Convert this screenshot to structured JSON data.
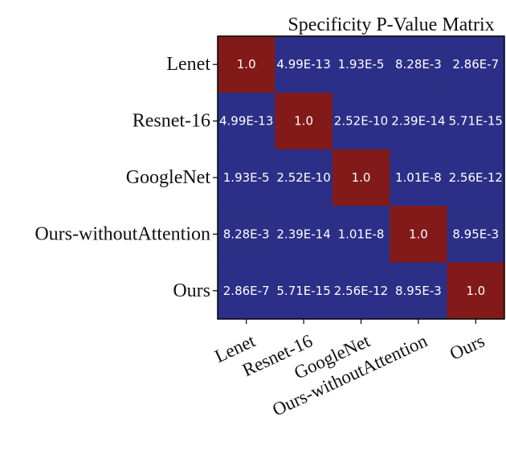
{
  "chart_data": {
    "type": "heatmap",
    "title": "Specificity P-Value Matrix",
    "xlabel": "",
    "ylabel": "",
    "grid": false,
    "colorbar": false,
    "row_labels": [
      "Lenet",
      "Resnet-16",
      "GoogleNet",
      "Ours-withoutAttention",
      "Ours"
    ],
    "col_labels": [
      "Lenet",
      "Resnet-16",
      "GoogleNet",
      "Ours-withoutAttention",
      "Ours"
    ],
    "values": [
      [
        1.0,
        4.99e-13,
        1.93e-05,
        0.00828,
        2.86e-07
      ],
      [
        4.99e-13,
        1.0,
        2.52e-10,
        2.39e-14,
        5.71e-15
      ],
      [
        1.93e-05,
        2.52e-10,
        1.0,
        1.01e-08,
        2.56e-12
      ],
      [
        0.00828,
        2.39e-14,
        1.01e-08,
        1.0,
        0.00895
      ],
      [
        2.86e-07,
        5.71e-15,
        2.56e-12,
        0.00895,
        1.0
      ]
    ],
    "cell_labels": [
      [
        "1.0",
        "4.99E-13",
        "1.93E-5",
        "8.28E-3",
        "2.86E-7"
      ],
      [
        "4.99E-13",
        "1.0",
        "2.52E-10",
        "2.39E-14",
        "5.71E-15"
      ],
      [
        "1.93E-5",
        "2.52E-10",
        "1.0",
        "1.01E-8",
        "2.56E-12"
      ],
      [
        "8.28E-3",
        "2.39E-14",
        "1.01E-8",
        "1.0",
        "8.95E-3"
      ],
      [
        "2.86E-7",
        "5.71E-15",
        "2.56E-12",
        "8.95E-3",
        "1.0"
      ]
    ],
    "colors": {
      "low": "#2b2f87",
      "high": "#821a1a",
      "text": "#ffffff"
    }
  }
}
